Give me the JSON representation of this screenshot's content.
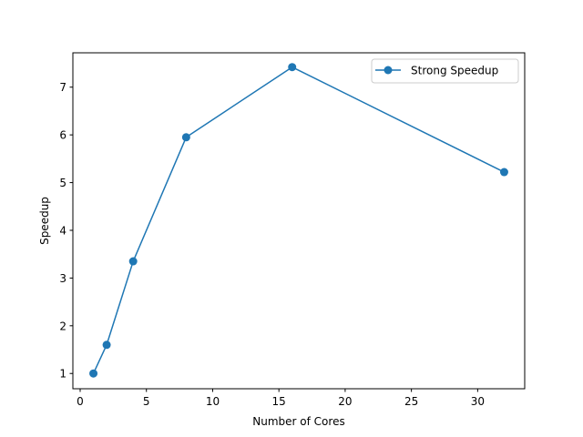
{
  "chart_data": {
    "type": "line",
    "title": "",
    "xlabel": "Number of Cores",
    "ylabel": "Speedup",
    "xlim": [
      -0.55,
      33.55
    ],
    "ylim": [
      0.68,
      7.72
    ],
    "x_ticks": [
      0,
      5,
      10,
      15,
      20,
      25,
      30
    ],
    "y_ticks": [
      1,
      2,
      3,
      4,
      5,
      6,
      7
    ],
    "grid": false,
    "legend_position": "upper right",
    "series": [
      {
        "name": "Strong Speedup",
        "color": "#1f77b4",
        "marker": "circle",
        "x": [
          1,
          2,
          4,
          8,
          16,
          32
        ],
        "y": [
          1.0,
          1.6,
          3.35,
          5.95,
          7.42,
          5.22
        ]
      }
    ]
  }
}
